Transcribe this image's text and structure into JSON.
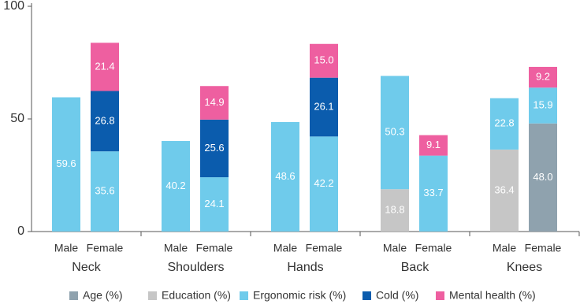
{
  "chart_data": {
    "type": "stacked-bar",
    "groups": [
      "Neck",
      "Shoulders",
      "Hands",
      "Back",
      "Knees"
    ],
    "categories": [
      "Male",
      "Female",
      "Male",
      "Female",
      "Male",
      "Female",
      "Male",
      "Female",
      "Male",
      "Female"
    ],
    "series": [
      {
        "name": "Age (%)",
        "color": "#8fa2ae",
        "values": [
          null,
          null,
          null,
          null,
          null,
          null,
          null,
          null,
          null,
          48
        ],
        "value_labels": [
          null,
          null,
          null,
          null,
          null,
          null,
          null,
          null,
          null,
          "48.0"
        ]
      },
      {
        "name": "Education (%)",
        "color": "#c6c6c6",
        "values": [
          null,
          null,
          null,
          null,
          null,
          null,
          18.8,
          null,
          36.4,
          null
        ]
      },
      {
        "name": "Ergonomic risk (%)",
        "color": "#6fcbeb",
        "values": [
          59.6,
          35.6,
          40.2,
          24.1,
          48.6,
          42.2,
          50.3,
          33.7,
          22.8,
          15.9
        ]
      },
      {
        "name": "Cold (%)",
        "color": "#0b5cad",
        "values": [
          null,
          26.8,
          null,
          25.6,
          null,
          26.1,
          null,
          null,
          null,
          null
        ]
      },
      {
        "name": "Mental health (%)",
        "color": "#ee5fa0",
        "values": [
          null,
          21.4,
          null,
          14.9,
          null,
          15,
          null,
          9.1,
          null,
          9.2
        ],
        "value_labels": [
          null,
          null,
          null,
          null,
          null,
          "15.0",
          null,
          null,
          null,
          null
        ]
      }
    ],
    "ylim": [
      0,
      100
    ],
    "yticks": [
      0,
      50,
      100
    ],
    "grid": false,
    "legend": "bottom"
  }
}
